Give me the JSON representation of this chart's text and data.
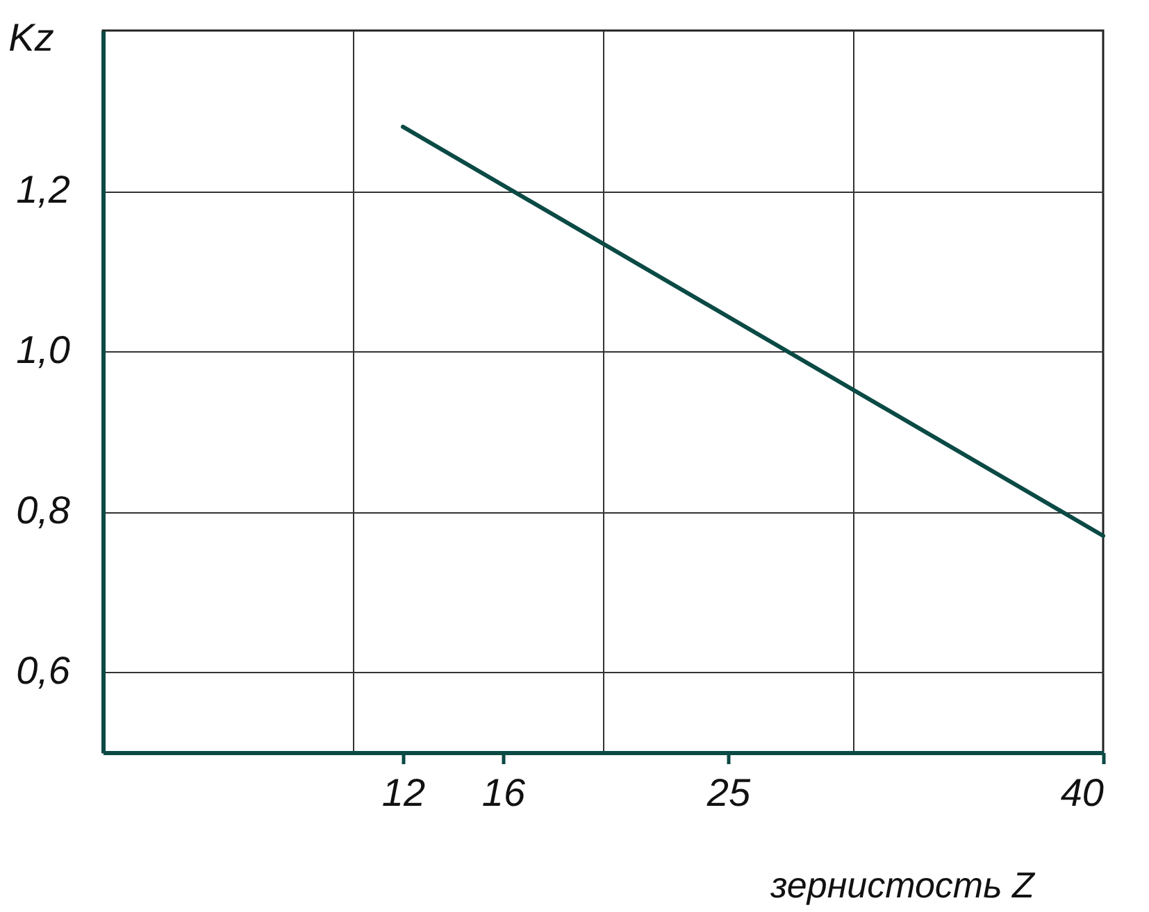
{
  "chart_data": {
    "type": "line",
    "xlabel": "зернистость Z",
    "ylabel": "Kz",
    "x": [
      12,
      40
    ],
    "series": [
      {
        "color": "#0b4a45",
        "values": [
          1.28,
          0.77
        ]
      }
    ],
    "xlim": [
      0,
      40
    ],
    "ylim": [
      0.5,
      1.4
    ],
    "xticks": [
      {
        "value": 10,
        "label": null
      },
      12,
      16,
      {
        "value": 20,
        "label": null
      },
      25,
      {
        "value": 30,
        "label": null
      },
      40
    ],
    "yticks": [
      {
        "value": 0.6,
        "label": "0,6"
      },
      {
        "value": 0.8,
        "label": "0,8"
      },
      {
        "value": 1.0,
        "label": "1,0"
      },
      {
        "value": 1.2,
        "label": "1,2"
      }
    ],
    "grid": true
  }
}
